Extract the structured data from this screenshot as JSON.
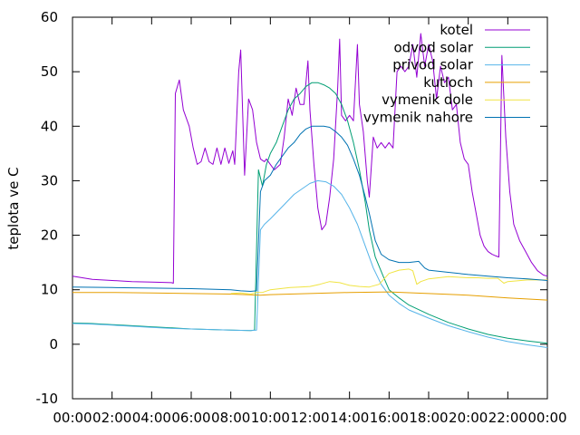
{
  "chart_data": {
    "type": "line",
    "ylabel": "teplota ve C",
    "xlabel": "",
    "ylim": [
      -10,
      60
    ],
    "yticks": [
      -10,
      0,
      10,
      20,
      30,
      40,
      50,
      60
    ],
    "xlim": [
      0,
      24
    ],
    "xticks": [
      {
        "v": 0,
        "label": "00:00"
      },
      {
        "v": 2,
        "label": "02:00"
      },
      {
        "v": 4,
        "label": "04:00"
      },
      {
        "v": 6,
        "label": "06:00"
      },
      {
        "v": 8,
        "label": "08:00"
      },
      {
        "v": 10,
        "label": "10:00"
      },
      {
        "v": 12,
        "label": "12:00"
      },
      {
        "v": 14,
        "label": "14:00"
      },
      {
        "v": 16,
        "label": "16:00"
      },
      {
        "v": 18,
        "label": "18:00"
      },
      {
        "v": 20,
        "label": "20:00"
      },
      {
        "v": 22,
        "label": "22:00"
      },
      {
        "v": 24,
        "label": "00:00"
      }
    ],
    "legend_position": "top-right",
    "series": [
      {
        "name": "kotel",
        "color": "#9400d3",
        "points": [
          [
            0,
            12.5
          ],
          [
            0.5,
            12.2
          ],
          [
            1,
            11.9
          ],
          [
            2,
            11.7
          ],
          [
            3,
            11.5
          ],
          [
            4,
            11.4
          ],
          [
            5,
            11.3
          ],
          [
            5.1,
            11.2
          ],
          [
            5.2,
            46
          ],
          [
            5.4,
            48.5
          ],
          [
            5.6,
            43
          ],
          [
            5.9,
            40
          ],
          [
            6.1,
            36
          ],
          [
            6.3,
            33
          ],
          [
            6.5,
            33.5
          ],
          [
            6.7,
            36
          ],
          [
            6.9,
            33.5
          ],
          [
            7.1,
            33
          ],
          [
            7.3,
            36
          ],
          [
            7.5,
            33
          ],
          [
            7.7,
            36
          ],
          [
            7.9,
            33.2
          ],
          [
            8.1,
            35.5
          ],
          [
            8.2,
            33
          ],
          [
            8.4,
            50
          ],
          [
            8.5,
            54
          ],
          [
            8.7,
            31
          ],
          [
            8.9,
            45
          ],
          [
            9.1,
            43
          ],
          [
            9.3,
            37
          ],
          [
            9.5,
            34
          ],
          [
            9.7,
            33.5
          ],
          [
            9.8,
            34
          ],
          [
            10,
            33
          ],
          [
            10.2,
            32
          ],
          [
            10.5,
            33
          ],
          [
            10.7,
            38
          ],
          [
            10.9,
            45
          ],
          [
            11.1,
            42
          ],
          [
            11.3,
            47
          ],
          [
            11.5,
            44
          ],
          [
            11.7,
            44
          ],
          [
            11.9,
            52
          ],
          [
            12,
            43
          ],
          [
            12.2,
            33
          ],
          [
            12.4,
            25
          ],
          [
            12.6,
            21
          ],
          [
            12.8,
            22
          ],
          [
            13,
            27
          ],
          [
            13.2,
            34
          ],
          [
            13.4,
            47
          ],
          [
            13.5,
            56
          ],
          [
            13.6,
            42
          ],
          [
            13.8,
            41
          ],
          [
            14,
            42
          ],
          [
            14.2,
            41
          ],
          [
            14.4,
            55
          ],
          [
            14.5,
            44
          ],
          [
            14.7,
            39
          ],
          [
            14.9,
            30
          ],
          [
            15,
            27
          ],
          [
            15.2,
            38
          ],
          [
            15.4,
            36
          ],
          [
            15.6,
            37
          ],
          [
            15.8,
            36
          ],
          [
            16,
            37
          ],
          [
            16.2,
            36
          ],
          [
            16.4,
            50
          ],
          [
            16.6,
            51
          ],
          [
            16.8,
            50
          ],
          [
            17,
            51
          ],
          [
            17.2,
            55
          ],
          [
            17.4,
            49
          ],
          [
            17.6,
            57
          ],
          [
            17.8,
            51
          ],
          [
            18,
            55
          ],
          [
            18.2,
            52
          ],
          [
            18.4,
            45
          ],
          [
            18.6,
            51
          ],
          [
            18.8,
            48
          ],
          [
            19,
            49
          ],
          [
            19.2,
            43
          ],
          [
            19.4,
            44
          ],
          [
            19.6,
            37
          ],
          [
            19.8,
            34
          ],
          [
            20,
            33
          ],
          [
            20.2,
            28
          ],
          [
            20.4,
            24
          ],
          [
            20.6,
            20
          ],
          [
            20.8,
            18
          ],
          [
            21,
            17
          ],
          [
            21.2,
            16.5
          ],
          [
            21.4,
            16.2
          ],
          [
            21.55,
            16
          ],
          [
            21.7,
            53
          ],
          [
            21.9,
            38
          ],
          [
            22.1,
            28
          ],
          [
            22.3,
            22
          ],
          [
            22.6,
            19
          ],
          [
            22.9,
            17
          ],
          [
            23.2,
            15
          ],
          [
            23.5,
            13.5
          ],
          [
            23.8,
            12.7
          ],
          [
            24,
            12.5
          ]
        ]
      },
      {
        "name": "odvod solar",
        "color": "#009e73",
        "points": [
          [
            0,
            3.9
          ],
          [
            1,
            3.8
          ],
          [
            2,
            3.6
          ],
          [
            3,
            3.4
          ],
          [
            4,
            3.2
          ],
          [
            5,
            3.0
          ],
          [
            6,
            2.8
          ],
          [
            7,
            2.7
          ],
          [
            8,
            2.6
          ],
          [
            9,
            2.5
          ],
          [
            9.2,
            2.6
          ],
          [
            9.4,
            32
          ],
          [
            9.6,
            29
          ],
          [
            9.8,
            33
          ],
          [
            10,
            35
          ],
          [
            10.3,
            37
          ],
          [
            10.6,
            40
          ],
          [
            10.9,
            43
          ],
          [
            11.2,
            45
          ],
          [
            11.5,
            46
          ],
          [
            11.8,
            47.3
          ],
          [
            12.1,
            48
          ],
          [
            12.4,
            48
          ],
          [
            12.7,
            47.6
          ],
          [
            13,
            47
          ],
          [
            13.3,
            46
          ],
          [
            13.6,
            44
          ],
          [
            13.9,
            41
          ],
          [
            14.2,
            37
          ],
          [
            14.5,
            32
          ],
          [
            14.8,
            26
          ],
          [
            15,
            21
          ],
          [
            15.3,
            16
          ],
          [
            15.7,
            12.5
          ],
          [
            16,
            10
          ],
          [
            16.5,
            8.5
          ],
          [
            17,
            7.2
          ],
          [
            18,
            5.5
          ],
          [
            19,
            4.0
          ],
          [
            20,
            2.8
          ],
          [
            21,
            1.8
          ],
          [
            22,
            1.1
          ],
          [
            23,
            0.6
          ],
          [
            24,
            0.2
          ]
        ]
      },
      {
        "name": "privod solar",
        "color": "#56b4e9",
        "points": [
          [
            0,
            3.8
          ],
          [
            1,
            3.7
          ],
          [
            2,
            3.5
          ],
          [
            3,
            3.3
          ],
          [
            4,
            3.1
          ],
          [
            5,
            2.9
          ],
          [
            6,
            2.8
          ],
          [
            7,
            2.7
          ],
          [
            8,
            2.6
          ],
          [
            9,
            2.5
          ],
          [
            9.3,
            2.6
          ],
          [
            9.5,
            21
          ],
          [
            9.7,
            22
          ],
          [
            10,
            23
          ],
          [
            10.4,
            24.5
          ],
          [
            10.8,
            26
          ],
          [
            11.2,
            27.5
          ],
          [
            11.6,
            28.5
          ],
          [
            12,
            29.5
          ],
          [
            12.4,
            30
          ],
          [
            12.8,
            29.8
          ],
          [
            13.2,
            29
          ],
          [
            13.6,
            27.5
          ],
          [
            14,
            25
          ],
          [
            14.4,
            22
          ],
          [
            14.8,
            18
          ],
          [
            15.2,
            14
          ],
          [
            15.6,
            11
          ],
          [
            16,
            9
          ],
          [
            16.5,
            7.5
          ],
          [
            17,
            6.3
          ],
          [
            18,
            4.8
          ],
          [
            19,
            3.4
          ],
          [
            20,
            2.3
          ],
          [
            21,
            1.3
          ],
          [
            22,
            0.5
          ],
          [
            23,
            -0.1
          ],
          [
            24,
            -0.6
          ]
        ]
      },
      {
        "name": "kutloch",
        "color": "#e69f00",
        "points": [
          [
            0,
            9.5
          ],
          [
            2,
            9.5
          ],
          [
            4,
            9.4
          ],
          [
            6,
            9.3
          ],
          [
            8,
            9.2
          ],
          [
            9.5,
            9.0
          ],
          [
            10,
            9.1
          ],
          [
            12,
            9.3
          ],
          [
            14,
            9.5
          ],
          [
            16,
            9.6
          ],
          [
            18,
            9.3
          ],
          [
            20,
            9.0
          ],
          [
            22,
            8.5
          ],
          [
            24,
            8.1
          ]
        ]
      },
      {
        "name": "vymenik dole",
        "color": "#f0e442",
        "points": [
          [
            8,
            9.3
          ],
          [
            8.5,
            9.4
          ],
          [
            9,
            9.2
          ],
          [
            9.3,
            9.5
          ],
          [
            9.6,
            9.5
          ],
          [
            10,
            10
          ],
          [
            10.5,
            10.2
          ],
          [
            11,
            10.4
          ],
          [
            11.5,
            10.5
          ],
          [
            12,
            10.6
          ],
          [
            12.5,
            11
          ],
          [
            13,
            11.5
          ],
          [
            13.5,
            11.3
          ],
          [
            14,
            10.8
          ],
          [
            14.5,
            10.6
          ],
          [
            15,
            10.5
          ],
          [
            15.5,
            11
          ],
          [
            16,
            13
          ],
          [
            16.5,
            13.6
          ],
          [
            17,
            13.8
          ],
          [
            17.2,
            13.5
          ],
          [
            17.4,
            11
          ],
          [
            17.6,
            11.5
          ],
          [
            18,
            12
          ],
          [
            18.5,
            12.2
          ],
          [
            19,
            12.4
          ],
          [
            19.5,
            12.3
          ],
          [
            20,
            12.2
          ],
          [
            20.5,
            12.2
          ],
          [
            21,
            12.1
          ],
          [
            21.5,
            12.1
          ],
          [
            21.8,
            11.2
          ],
          [
            22,
            11.5
          ],
          [
            23,
            11.8
          ],
          [
            24,
            11.8
          ]
        ]
      },
      {
        "name": "vymenik nahore",
        "color": "#0072b2",
        "points": [
          [
            0,
            10.5
          ],
          [
            2,
            10.4
          ],
          [
            4,
            10.3
          ],
          [
            6,
            10.2
          ],
          [
            7,
            10.1
          ],
          [
            8,
            10
          ],
          [
            8.5,
            9.8
          ],
          [
            9,
            9.7
          ],
          [
            9.3,
            9.8
          ],
          [
            9.5,
            28
          ],
          [
            9.7,
            30
          ],
          [
            10,
            31
          ],
          [
            10.3,
            33
          ],
          [
            10.6,
            34.5
          ],
          [
            10.9,
            36
          ],
          [
            11.2,
            37
          ],
          [
            11.5,
            38.5
          ],
          [
            11.8,
            39.5
          ],
          [
            12.1,
            40
          ],
          [
            12.4,
            40
          ],
          [
            12.7,
            40
          ],
          [
            13,
            39.8
          ],
          [
            13.3,
            39
          ],
          [
            13.6,
            38
          ],
          [
            13.9,
            36.5
          ],
          [
            14.2,
            34
          ],
          [
            14.5,
            31
          ],
          [
            14.8,
            27
          ],
          [
            15,
            24
          ],
          [
            15.3,
            19
          ],
          [
            15.6,
            16.5
          ],
          [
            16,
            15.5
          ],
          [
            16.5,
            15
          ],
          [
            17,
            15
          ],
          [
            17.5,
            15.2
          ],
          [
            17.8,
            14
          ],
          [
            18,
            13.6
          ],
          [
            19,
            13.2
          ],
          [
            20,
            12.8
          ],
          [
            21,
            12.5
          ],
          [
            22,
            12.2
          ],
          [
            23,
            12
          ],
          [
            24,
            11.7
          ]
        ]
      }
    ]
  }
}
